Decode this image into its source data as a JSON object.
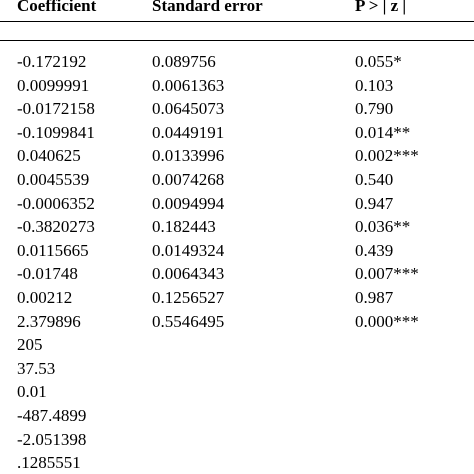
{
  "table": {
    "columns": [
      "Coefficient",
      "Standard error",
      "P > | z |"
    ],
    "rows": [
      [
        "-0.172192",
        "0.089756",
        "0.055*"
      ],
      [
        "0.0099991",
        "0.0061363",
        "0.103"
      ],
      [
        "-0.0172158",
        "0.0645073",
        "0.790"
      ],
      [
        "-0.1099841",
        "0.0449191",
        "0.014**"
      ],
      [
        "0.040625",
        "0.0133996",
        "0.002***"
      ],
      [
        "0.0045539",
        "0.0074268",
        "0.540"
      ],
      [
        "-0.0006352",
        "0.0094994",
        "0.947"
      ],
      [
        "-0.3820273",
        "0.182443",
        "0.036**"
      ],
      [
        "0.0115665",
        "0.0149324",
        "0.439"
      ],
      [
        "-0.01748",
        "0.0064343",
        "0.007***"
      ],
      [
        "0.00212",
        "0.1256527",
        "0.987"
      ],
      [
        "2.379896",
        "0.5546495",
        "0.000***"
      ],
      [
        "205"
      ],
      [
        "37.53"
      ],
      [
        "0.01"
      ],
      [
        "-487.4899"
      ],
      [
        "-2.051398"
      ],
      [
        ".1285551"
      ]
    ]
  }
}
